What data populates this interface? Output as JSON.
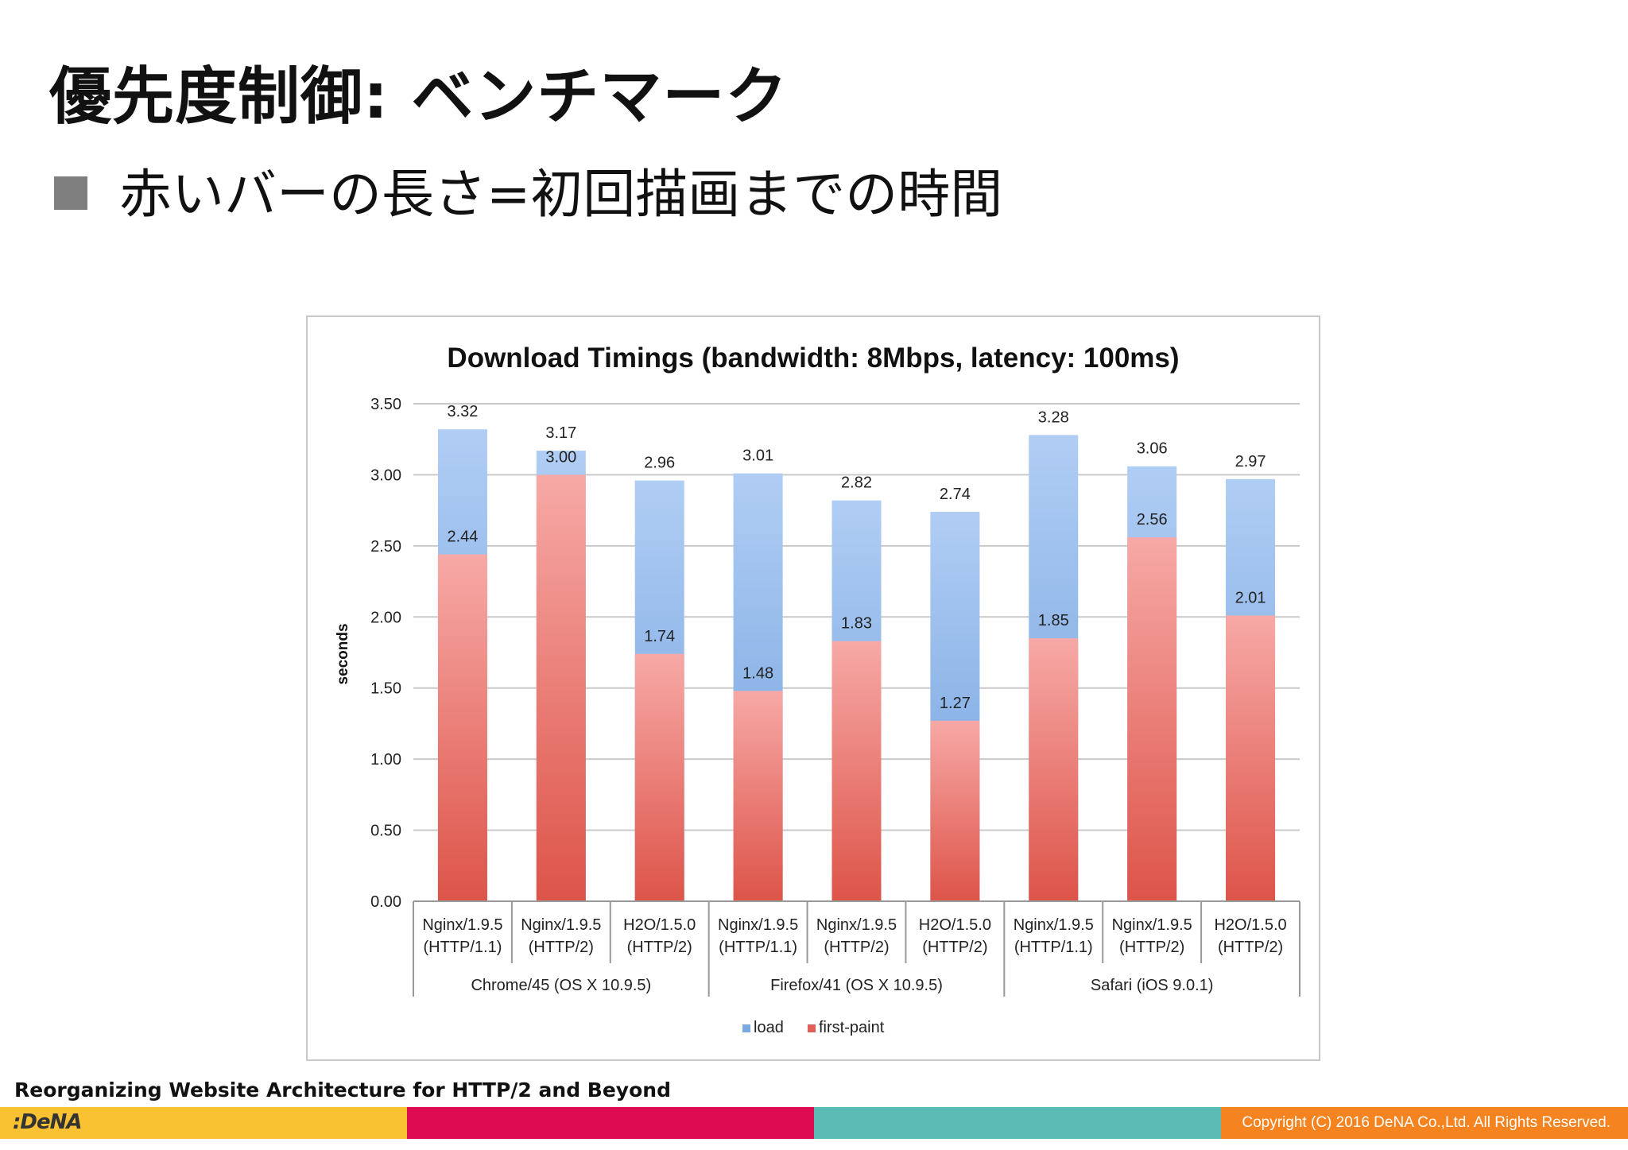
{
  "slide": {
    "title": "優先度制御: ベンチマーク",
    "bullet": "赤いバーの長さ=初回描画までの時間"
  },
  "footer": {
    "presentation_title": "Reorganizing Website Architecture for HTTP/2 and Beyond",
    "logo": ":DeNA",
    "copyright": "Copyright (C) 2016 DeNA Co.,Ltd. All Rights Reserved.",
    "colors": [
      "#f9c232",
      "#de0a52",
      "#5bbcb5",
      "#f5831f"
    ]
  },
  "chart_data": {
    "type": "bar",
    "title": "Download Timings (bandwidth: 8Mbps, latency: 100ms)",
    "ylabel": "seconds",
    "ylim": [
      0,
      3.5
    ],
    "yticks": [
      "0.00",
      "0.50",
      "1.00",
      "1.50",
      "2.00",
      "2.50",
      "3.00",
      "3.50"
    ],
    "grid": true,
    "legend_position": "bottom",
    "groups": [
      {
        "label": "Chrome/45 (OS X 10.9.5)",
        "categories": [
          0,
          1,
          2
        ]
      },
      {
        "label": "Firefox/41 (OS X 10.9.5)",
        "categories": [
          3,
          4,
          5
        ]
      },
      {
        "label": "Safari (iOS 9.0.1)",
        "categories": [
          6,
          7,
          8
        ]
      }
    ],
    "categories": [
      [
        "Nginx/1.9.5",
        "(HTTP/1.1)"
      ],
      [
        "Nginx/1.9.5",
        "(HTTP/2)"
      ],
      [
        "H2O/1.5.0",
        "(HTTP/2)"
      ],
      [
        "Nginx/1.9.5",
        "(HTTP/1.1)"
      ],
      [
        "Nginx/1.9.5",
        "(HTTP/2)"
      ],
      [
        "H2O/1.5.0",
        "(HTTP/2)"
      ],
      [
        "Nginx/1.9.5",
        "(HTTP/1.1)"
      ],
      [
        "Nginx/1.9.5",
        "(HTTP/2)"
      ],
      [
        "H2O/1.5.0",
        "(HTTP/2)"
      ]
    ],
    "series": [
      {
        "name": "load",
        "color": "#7aaae3",
        "values": [
          3.32,
          3.17,
          2.96,
          3.01,
          2.82,
          2.74,
          3.28,
          3.06,
          2.97
        ],
        "labels": [
          "3.32",
          "3.17",
          "2.96",
          "3.01",
          "2.82",
          "2.74",
          "3.28",
          "3.06",
          "2.97"
        ]
      },
      {
        "name": "first-paint",
        "color": "#e06058",
        "values": [
          2.44,
          3.0,
          1.74,
          1.48,
          1.83,
          1.27,
          1.85,
          2.56,
          2.01
        ],
        "labels": [
          "2.44",
          "3.00",
          "1.74",
          "1.48",
          "1.83",
          "1.27",
          "1.85",
          "2.56",
          "2.01"
        ]
      }
    ]
  }
}
